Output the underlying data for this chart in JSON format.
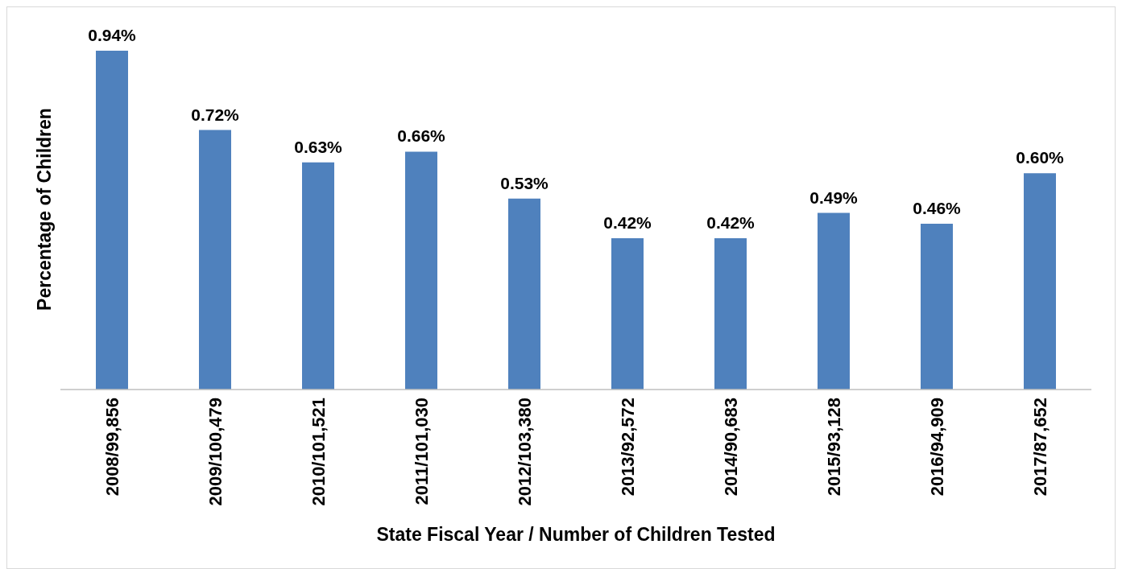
{
  "chart_data": {
    "type": "bar",
    "xlabel": "State Fiscal Year / Number of Children Tested",
    "ylabel": "Percentage of Children",
    "categories": [
      "2008/99,856",
      "2009/100,479",
      "2010/101,521",
      "2011/101,030",
      "2012/103,380",
      "2013/92,572",
      "2014/90,683",
      "2015/93,128",
      "2016/94,909",
      "2017/87,652"
    ],
    "values": [
      0.94,
      0.72,
      0.63,
      0.66,
      0.53,
      0.42,
      0.42,
      0.49,
      0.46,
      0.6
    ],
    "value_labels": [
      "0.94%",
      "0.72%",
      "0.63%",
      "0.66%",
      "0.53%",
      "0.42%",
      "0.42%",
      "0.49%",
      "0.46%",
      "0.60%"
    ],
    "color": "#4f81bd",
    "tick_labels": "x"
  }
}
